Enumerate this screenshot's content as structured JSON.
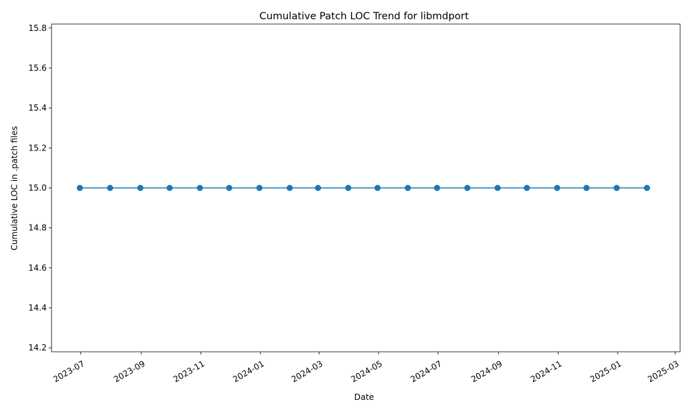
{
  "chart_data": {
    "type": "line",
    "title": "Cumulative Patch LOC Trend for libmdport",
    "xlabel": "Date",
    "ylabel": "Cumulative LOC in .patch files",
    "x": [
      "2023-06-30",
      "2023-07-31",
      "2023-08-31",
      "2023-09-30",
      "2023-10-31",
      "2023-11-30",
      "2023-12-31",
      "2024-01-31",
      "2024-02-29",
      "2024-03-31",
      "2024-04-30",
      "2024-05-31",
      "2024-06-30",
      "2024-07-31",
      "2024-08-31",
      "2024-09-30",
      "2024-10-31",
      "2024-11-30",
      "2024-12-31",
      "2025-01-31"
    ],
    "series": [
      {
        "values": [
          15,
          15,
          15,
          15,
          15,
          15,
          15,
          15,
          15,
          15,
          15,
          15,
          15,
          15,
          15,
          15,
          15,
          15,
          15,
          15
        ]
      }
    ],
    "xlim": [
      "2023-06-01",
      "2025-03-06"
    ],
    "ylim": [
      14.18,
      15.82
    ],
    "x_ticks": [
      "2023-07",
      "2023-09",
      "2023-11",
      "2024-01",
      "2024-03",
      "2024-05",
      "2024-07",
      "2024-09",
      "2024-11",
      "2025-01",
      "2025-03"
    ],
    "y_ticks": [
      "14.2",
      "14.4",
      "14.6",
      "14.8",
      "15.0",
      "15.2",
      "15.4",
      "15.6",
      "15.8"
    ],
    "grid": false,
    "color": "#1f77b4",
    "marker": "circle"
  }
}
